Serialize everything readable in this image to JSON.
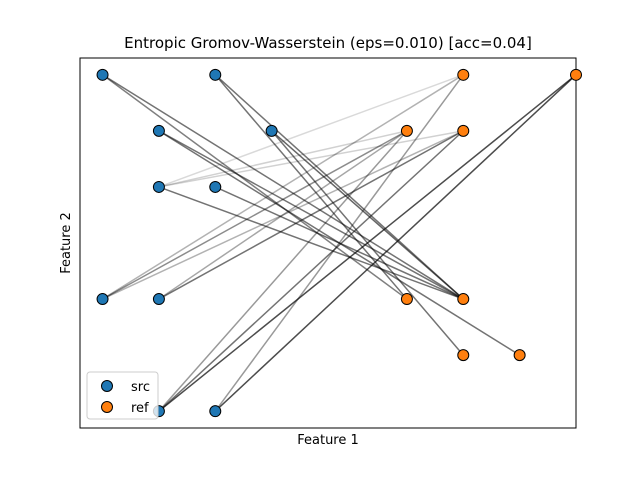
{
  "chart_data": {
    "type": "scatter",
    "title": "Entropic Gromov-Wasserstein (eps=0.010) [acc=0.04]",
    "xlabel": "Feature 1",
    "ylabel": "Feature 2",
    "xlim": [
      -0.4,
      8.4
    ],
    "ylim": [
      -0.3,
      6.3
    ],
    "ticks_visible": false,
    "grid": false,
    "legend_position": "lower-left",
    "series": [
      {
        "name": "src",
        "color": "#1f77b4",
        "points": [
          {
            "x": 0,
            "y": 6
          },
          {
            "x": 2,
            "y": 6
          },
          {
            "x": 1,
            "y": 5
          },
          {
            "x": 3,
            "y": 5
          },
          {
            "x": 1,
            "y": 4
          },
          {
            "x": 2,
            "y": 4
          },
          {
            "x": 0,
            "y": 2
          },
          {
            "x": 1,
            "y": 2
          },
          {
            "x": 1,
            "y": 0
          },
          {
            "x": 2,
            "y": 0
          }
        ]
      },
      {
        "name": "ref",
        "color": "#ff7f0e",
        "points": [
          {
            "x": 6.4,
            "y": 6
          },
          {
            "x": 8.4,
            "y": 6
          },
          {
            "x": 5.4,
            "y": 5
          },
          {
            "x": 6.4,
            "y": 5
          },
          {
            "x": 5.4,
            "y": 2
          },
          {
            "x": 6.4,
            "y": 2
          },
          {
            "x": 6.4,
            "y": 1
          },
          {
            "x": 7.4,
            "y": 1
          }
        ]
      }
    ],
    "links": [
      {
        "from": [
          0,
          6
        ],
        "to": [
          6.4,
          2
        ],
        "alpha": 0.55
      },
      {
        "from": [
          2,
          6
        ],
        "to": [
          6.4,
          2
        ],
        "alpha": 0.55
      },
      {
        "from": [
          1,
          5
        ],
        "to": [
          6.4,
          2
        ],
        "alpha": 0.55
      },
      {
        "from": [
          1,
          5
        ],
        "to": [
          7.4,
          1
        ],
        "alpha": 0.55
      },
      {
        "from": [
          3,
          5
        ],
        "to": [
          6.4,
          2
        ],
        "alpha": 0.6
      },
      {
        "from": [
          3,
          5
        ],
        "to": [
          6.4,
          1
        ],
        "alpha": 0.55
      },
      {
        "from": [
          2,
          6
        ],
        "to": [
          5.4,
          2
        ],
        "alpha": 0.55
      },
      {
        "from": [
          0,
          6
        ],
        "to": [
          5.4,
          2
        ],
        "alpha": 0.5
      },
      {
        "from": [
          1,
          4
        ],
        "to": [
          6.4,
          2
        ],
        "alpha": 0.55
      },
      {
        "from": [
          2,
          4
        ],
        "to": [
          6.4,
          2
        ],
        "alpha": 0.55
      },
      {
        "from": [
          1,
          4
        ],
        "to": [
          5.4,
          5
        ],
        "alpha": 0.18
      },
      {
        "from": [
          1,
          4
        ],
        "to": [
          6.4,
          5
        ],
        "alpha": 0.18
      },
      {
        "from": [
          1,
          4
        ],
        "to": [
          6.4,
          6
        ],
        "alpha": 0.15
      },
      {
        "from": [
          0,
          2
        ],
        "to": [
          5.4,
          5
        ],
        "alpha": 0.45
      },
      {
        "from": [
          0,
          2
        ],
        "to": [
          6.4,
          6
        ],
        "alpha": 0.3
      },
      {
        "from": [
          0,
          2
        ],
        "to": [
          6.4,
          5
        ],
        "alpha": 0.3
      },
      {
        "from": [
          1,
          2
        ],
        "to": [
          6.4,
          5
        ],
        "alpha": 0.55
      },
      {
        "from": [
          1,
          2
        ],
        "to": [
          5.4,
          5
        ],
        "alpha": 0.35
      },
      {
        "from": [
          1,
          0
        ],
        "to": [
          8.4,
          6
        ],
        "alpha": 0.7
      },
      {
        "from": [
          2,
          0
        ],
        "to": [
          8.4,
          6
        ],
        "alpha": 0.7
      },
      {
        "from": [
          2,
          0
        ],
        "to": [
          6.4,
          6
        ],
        "alpha": 0.4
      },
      {
        "from": [
          1,
          0
        ],
        "to": [
          6.4,
          5
        ],
        "alpha": 0.55
      },
      {
        "from": [
          1,
          0
        ],
        "to": [
          5.4,
          5
        ],
        "alpha": 0.4
      }
    ]
  }
}
